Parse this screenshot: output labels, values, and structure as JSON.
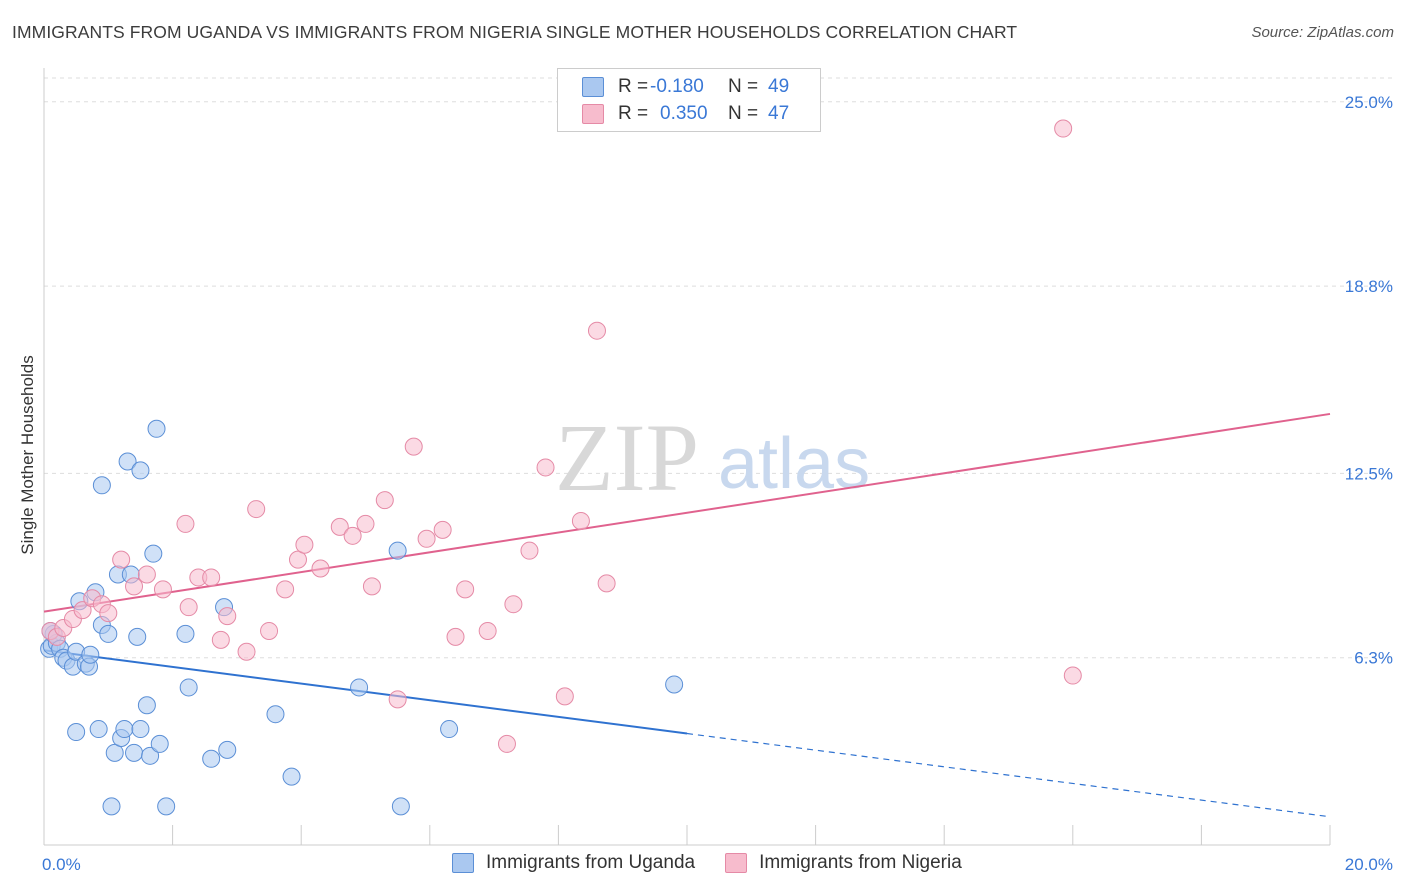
{
  "title": "IMMIGRANTS FROM UGANDA VS IMMIGRANTS FROM NIGERIA SINGLE MOTHER HOUSEHOLDS CORRELATION CHART",
  "source": "Source: ZipAtlas.com",
  "watermark": {
    "zip": "ZIP",
    "atlas": "atlas"
  },
  "legend": {
    "uganda": {
      "r_label": "R =",
      "r_value": "-0.180",
      "n_label": "N =",
      "n_value": "49"
    },
    "nigeria": {
      "r_label": "R =",
      "r_value": "0.350",
      "n_label": "N =",
      "n_value": "47"
    }
  },
  "colors": {
    "uganda_fill": "#aac8f0",
    "uganda_stroke": "#5b8fd6",
    "uganda_line": "#2f72d0",
    "nigeria_fill": "#f7bccd",
    "nigeria_stroke": "#e58aa6",
    "nigeria_line": "#e0628e",
    "value_text": "#3a78d6",
    "grid": "#dddddd",
    "axis_text": "#3a78d6"
  },
  "chart_data": {
    "type": "scatter",
    "title": "IMMIGRANTS FROM UGANDA VS IMMIGRANTS FROM NIGERIA SINGLE MOTHER HOUSEHOLDS CORRELATION CHART",
    "xlabel": "",
    "ylabel": "Single Mother Households",
    "xlim": [
      0,
      20
    ],
    "ylim": [
      0,
      25.8
    ],
    "x_tick_labels": [
      {
        "value": 0,
        "label": "0.0%"
      },
      {
        "value": 20,
        "label": "20.0%"
      }
    ],
    "y_tick_labels": [
      {
        "value": 6.3,
        "label": "6.3%"
      },
      {
        "value": 12.5,
        "label": "12.5%"
      },
      {
        "value": 18.8,
        "label": "18.8%"
      },
      {
        "value": 25.0,
        "label": "25.0%"
      }
    ],
    "grid": true,
    "series": [
      {
        "name": "Immigrants from Uganda",
        "points": [
          [
            0.08,
            6.6
          ],
          [
            0.12,
            6.7
          ],
          [
            0.15,
            7.1
          ],
          [
            0.2,
            6.8
          ],
          [
            0.25,
            6.6
          ],
          [
            0.3,
            6.3
          ],
          [
            0.35,
            6.2
          ],
          [
            0.45,
            6.0
          ],
          [
            0.5,
            6.5
          ],
          [
            0.55,
            8.2
          ],
          [
            0.65,
            6.1
          ],
          [
            0.7,
            6.0
          ],
          [
            0.72,
            6.4
          ],
          [
            0.8,
            8.5
          ],
          [
            0.9,
            12.1
          ],
          [
            0.9,
            7.4
          ],
          [
            1.0,
            7.1
          ],
          [
            1.05,
            1.3
          ],
          [
            1.1,
            3.1
          ],
          [
            1.15,
            9.1
          ],
          [
            1.2,
            3.6
          ],
          [
            1.25,
            3.9
          ],
          [
            1.3,
            12.9
          ],
          [
            1.35,
            9.1
          ],
          [
            1.4,
            3.1
          ],
          [
            1.45,
            7.0
          ],
          [
            1.5,
            3.9
          ],
          [
            1.5,
            12.6
          ],
          [
            1.6,
            4.7
          ],
          [
            1.65,
            3.0
          ],
          [
            1.7,
            9.8
          ],
          [
            1.75,
            14.0
          ],
          [
            1.8,
            3.4
          ],
          [
            1.9,
            1.3
          ],
          [
            2.2,
            7.1
          ],
          [
            2.25,
            5.3
          ],
          [
            2.6,
            2.9
          ],
          [
            2.8,
            8.0
          ],
          [
            2.85,
            3.2
          ],
          [
            3.6,
            4.4
          ],
          [
            3.85,
            2.3
          ],
          [
            4.9,
            5.3
          ],
          [
            5.5,
            9.9
          ],
          [
            5.55,
            1.3
          ],
          [
            6.3,
            3.9
          ],
          [
            9.8,
            5.4
          ],
          [
            0.5,
            3.8
          ],
          [
            0.85,
            3.9
          ],
          [
            0.1,
            7.2
          ]
        ]
      },
      {
        "name": "Immigrants from Nigeria",
        "points": [
          [
            0.1,
            7.2
          ],
          [
            0.2,
            7.0
          ],
          [
            0.3,
            7.3
          ],
          [
            0.45,
            7.6
          ],
          [
            0.6,
            7.9
          ],
          [
            0.75,
            8.3
          ],
          [
            0.9,
            8.1
          ],
          [
            1.0,
            7.8
          ],
          [
            1.2,
            9.6
          ],
          [
            1.4,
            8.7
          ],
          [
            1.6,
            9.1
          ],
          [
            1.85,
            8.6
          ],
          [
            2.2,
            10.8
          ],
          [
            2.25,
            8.0
          ],
          [
            2.4,
            9.0
          ],
          [
            2.6,
            9.0
          ],
          [
            2.75,
            6.9
          ],
          [
            2.85,
            7.7
          ],
          [
            3.15,
            6.5
          ],
          [
            3.3,
            11.3
          ],
          [
            3.5,
            7.2
          ],
          [
            3.75,
            8.6
          ],
          [
            3.95,
            9.6
          ],
          [
            4.05,
            10.1
          ],
          [
            4.3,
            9.3
          ],
          [
            4.6,
            10.7
          ],
          [
            4.8,
            10.4
          ],
          [
            5.0,
            10.8
          ],
          [
            5.1,
            8.7
          ],
          [
            5.3,
            11.6
          ],
          [
            5.5,
            4.9
          ],
          [
            5.75,
            13.4
          ],
          [
            5.95,
            10.3
          ],
          [
            6.2,
            10.6
          ],
          [
            6.4,
            7.0
          ],
          [
            6.55,
            8.6
          ],
          [
            6.9,
            7.2
          ],
          [
            7.2,
            3.4
          ],
          [
            7.3,
            8.1
          ],
          [
            7.55,
            9.9
          ],
          [
            7.8,
            12.7
          ],
          [
            8.1,
            5.0
          ],
          [
            8.35,
            10.9
          ],
          [
            8.6,
            17.3
          ],
          [
            8.75,
            8.8
          ],
          [
            15.85,
            24.1
          ],
          [
            16.0,
            5.7
          ]
        ]
      }
    ],
    "trendlines": [
      {
        "series": "Immigrants from Uganda",
        "x_start": 0,
        "y_start": 6.55,
        "x_solid_end": 10.0,
        "y_solid_end": 3.75,
        "x_end": 20,
        "y_end": 0.95
      },
      {
        "series": "Immigrants from Nigeria",
        "x_start": 0,
        "y_start": 7.85,
        "x_end": 20,
        "y_end": 14.5
      }
    ]
  }
}
